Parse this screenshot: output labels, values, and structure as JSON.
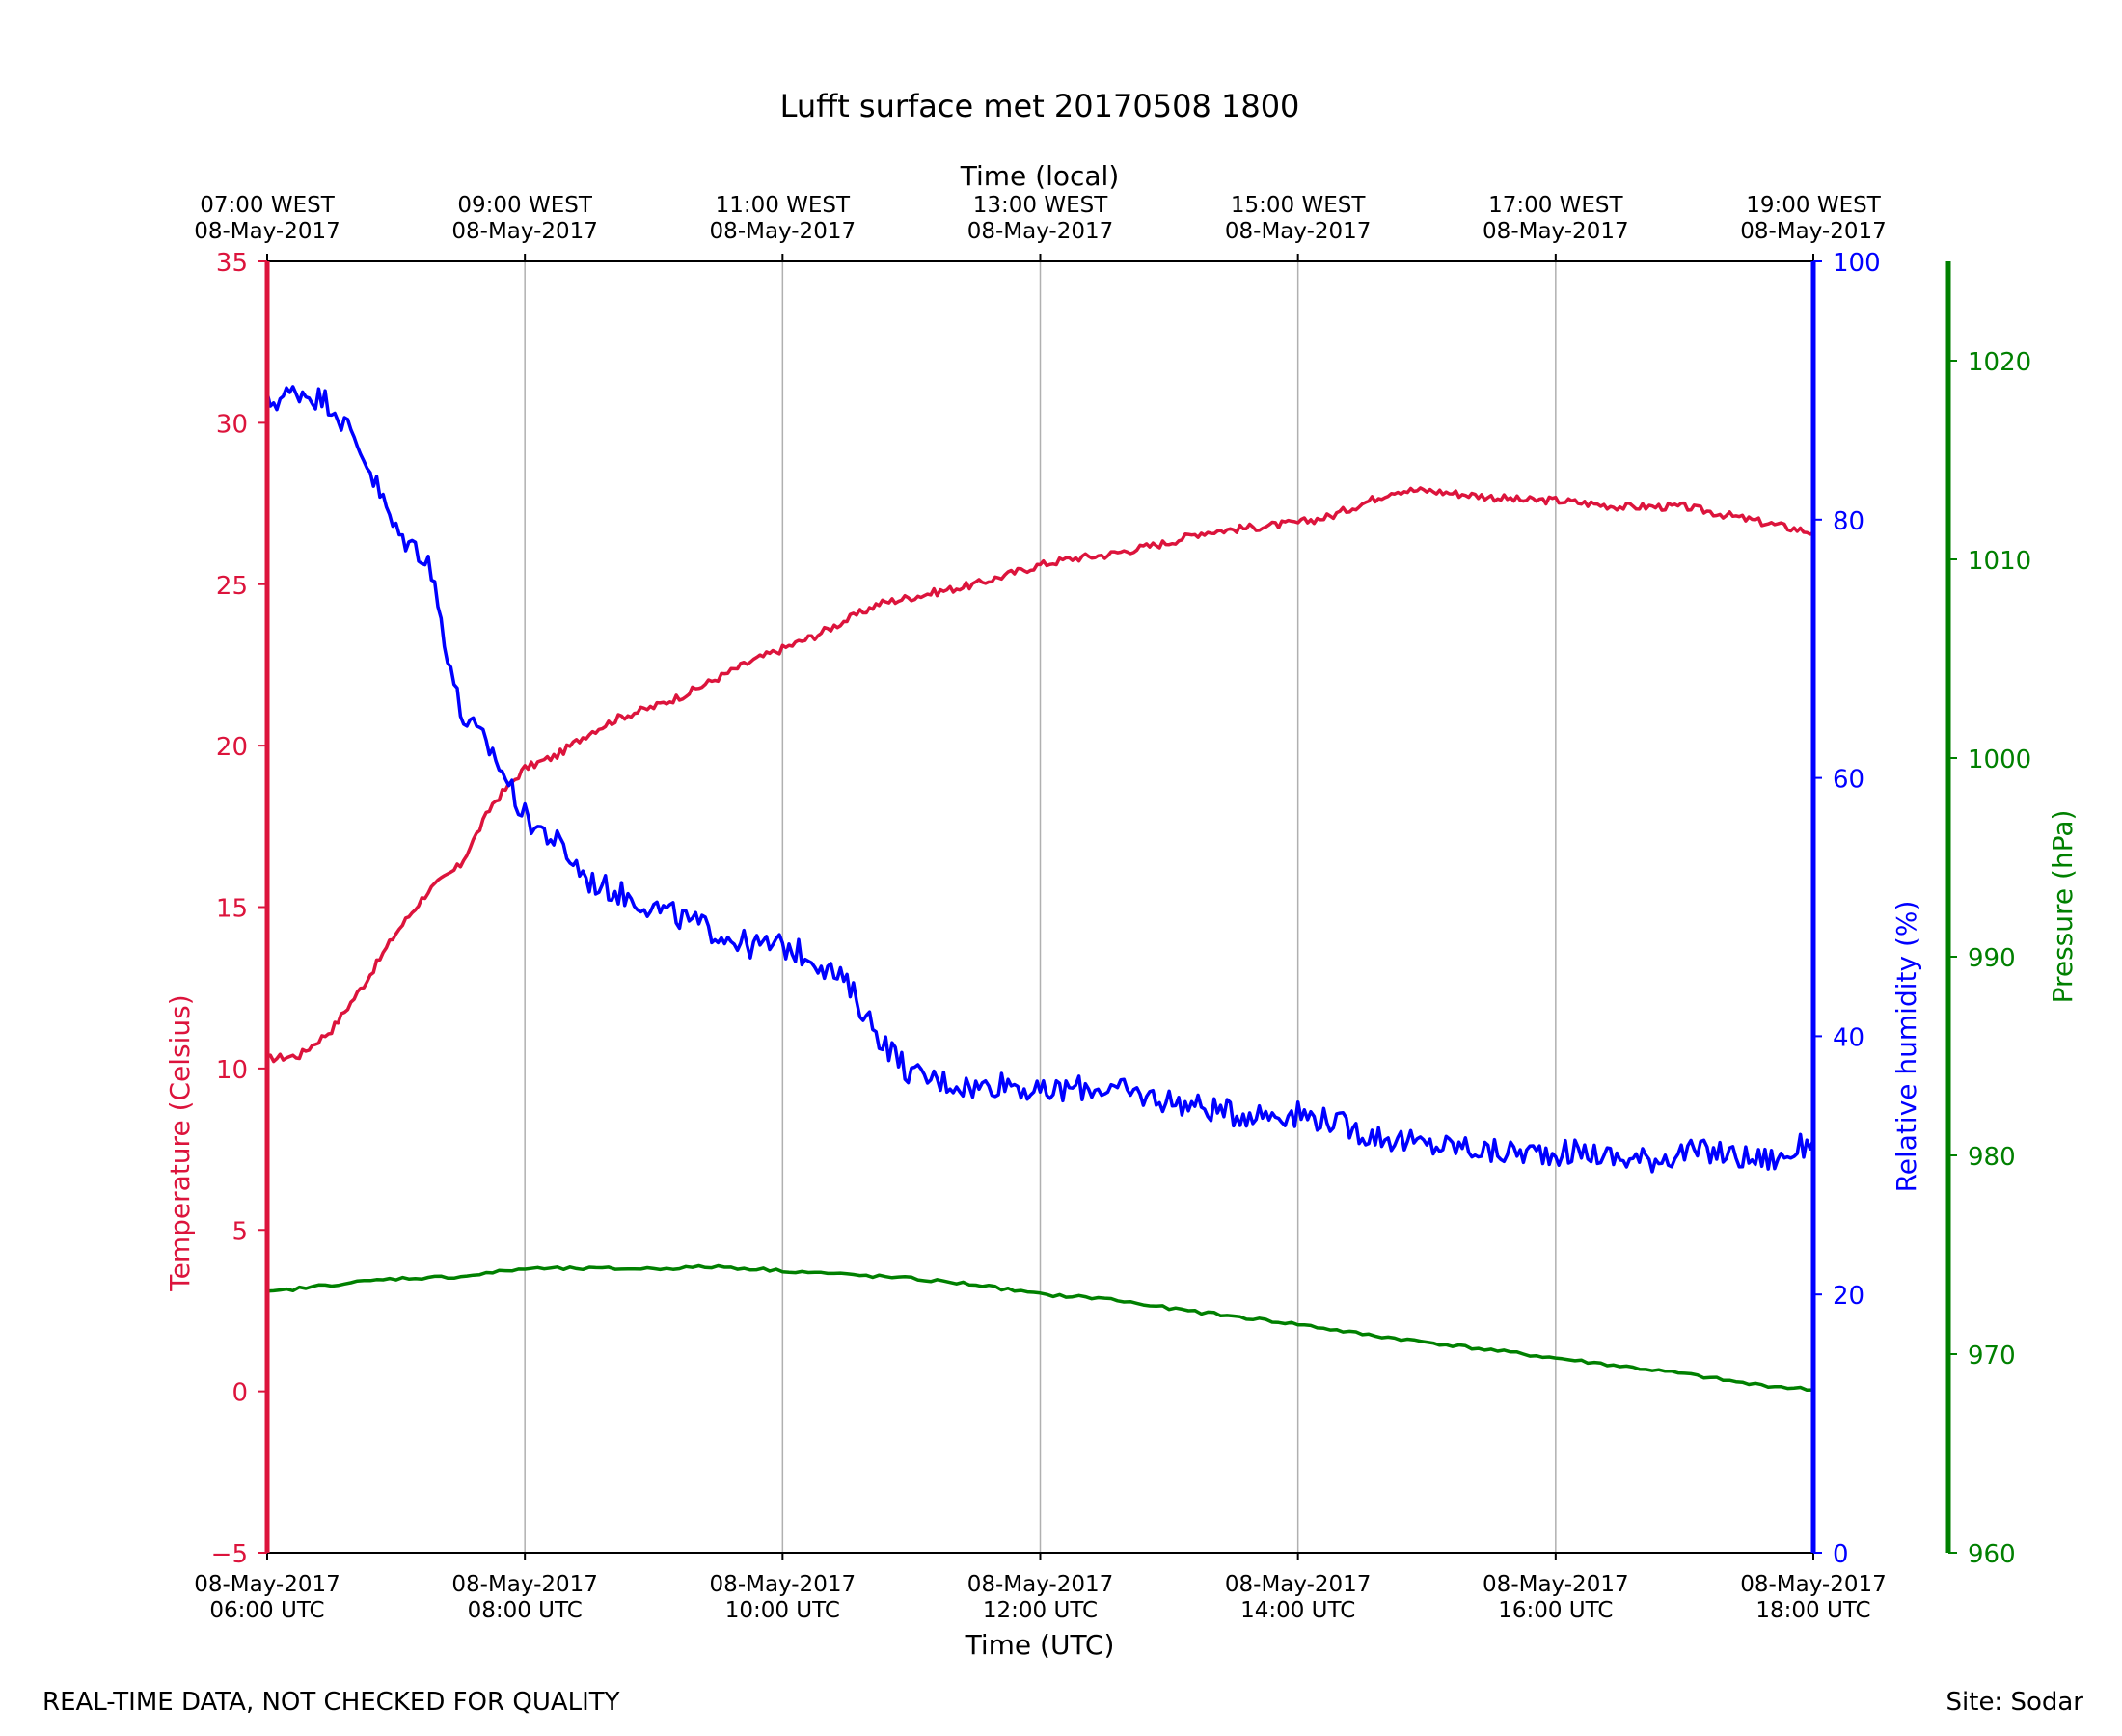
{
  "footer": {
    "note": "REAL-TIME DATA, NOT CHECKED FOR QUALITY",
    "site": "Site: Sodar"
  },
  "colors": {
    "temperature": "#dc143c",
    "humidity": "#0000ff",
    "pressure": "#008000",
    "grid": "#b0b0b0",
    "axis": "#000000"
  },
  "chart_data": {
    "type": "line",
    "title": "Lufft surface met 20170508 1800",
    "xlabel": "Time (UTC)",
    "x2label": "Time (local)",
    "xlim_hours_utc": [
      6,
      18
    ],
    "x_ticks_hours": [
      6,
      8,
      10,
      12,
      14,
      16,
      18
    ],
    "x_tick_labels_bottom": [
      [
        "08-May-2017",
        "06:00 UTC"
      ],
      [
        "08-May-2017",
        "08:00 UTC"
      ],
      [
        "08-May-2017",
        "10:00 UTC"
      ],
      [
        "08-May-2017",
        "12:00 UTC"
      ],
      [
        "08-May-2017",
        "14:00 UTC"
      ],
      [
        "08-May-2017",
        "16:00 UTC"
      ],
      [
        "08-May-2017",
        "18:00 UTC"
      ]
    ],
    "x_tick_labels_top": [
      [
        "07:00 WEST",
        "08-May-2017"
      ],
      [
        "09:00 WEST",
        "08-May-2017"
      ],
      [
        "11:00 WEST",
        "08-May-2017"
      ],
      [
        "13:00 WEST",
        "08-May-2017"
      ],
      [
        "15:00 WEST",
        "08-May-2017"
      ],
      [
        "17:00 WEST",
        "08-May-2017"
      ],
      [
        "19:00 WEST",
        "08-May-2017"
      ]
    ],
    "grid": "vertical",
    "axes": {
      "temperature": {
        "label": "Temperature (Celsius)",
        "ylim": [
          -5,
          35
        ],
        "ticks": [
          -5,
          0,
          5,
          10,
          15,
          20,
          25,
          30,
          35
        ],
        "tick_labels": [
          "−5",
          "0",
          "5",
          "10",
          "15",
          "20",
          "25",
          "30",
          "35"
        ]
      },
      "humidity": {
        "label": "Relative humidity (%)",
        "ylim": [
          0,
          100
        ],
        "ticks": [
          0,
          20,
          40,
          60,
          80,
          100
        ],
        "tick_labels": [
          "0",
          "20",
          "40",
          "60",
          "80",
          "100"
        ]
      },
      "pressure": {
        "label": "Pressure (hPa)",
        "ylim": [
          960,
          1025
        ],
        "ticks": [
          960,
          970,
          980,
          990,
          1000,
          1010,
          1020
        ],
        "tick_labels": [
          "960",
          "970",
          "980",
          "990",
          "1000",
          "1010",
          "1020"
        ]
      }
    },
    "series": [
      {
        "name": "Temperature (Celsius)",
        "axis": "temperature",
        "x": [
          6.0,
          6.25,
          6.5,
          6.75,
          7.0,
          7.25,
          7.5,
          7.75,
          8.0,
          8.25,
          8.5,
          8.75,
          9.0,
          9.25,
          9.5,
          9.75,
          10.0,
          10.25,
          10.5,
          10.75,
          11.0,
          11.25,
          11.5,
          11.75,
          12.0,
          12.25,
          12.5,
          12.75,
          13.0,
          13.25,
          13.5,
          13.75,
          14.0,
          14.25,
          14.5,
          14.75,
          15.0,
          15.25,
          15.5,
          15.75,
          16.0,
          16.25,
          16.5,
          16.75,
          17.0,
          17.25,
          17.5,
          17.75,
          18.0
        ],
        "values": [
          10.3,
          10.4,
          11.2,
          12.6,
          14.2,
          15.5,
          16.3,
          18.2,
          19.3,
          19.7,
          20.4,
          20.9,
          21.2,
          21.6,
          22.1,
          22.6,
          23.0,
          23.4,
          23.9,
          24.4,
          24.6,
          24.8,
          25.0,
          25.3,
          25.6,
          25.8,
          25.9,
          26.1,
          26.3,
          26.6,
          26.7,
          26.8,
          26.9,
          27.1,
          27.5,
          27.9,
          27.9,
          27.8,
          27.7,
          27.6,
          27.6,
          27.5,
          27.4,
          27.4,
          27.4,
          27.2,
          27.0,
          26.8,
          26.6
        ]
      },
      {
        "name": "Relative humidity (%)",
        "axis": "humidity",
        "x": [
          6.0,
          6.25,
          6.5,
          6.75,
          7.0,
          7.25,
          7.5,
          7.75,
          8.0,
          8.25,
          8.5,
          8.75,
          9.0,
          9.25,
          9.5,
          9.75,
          10.0,
          10.25,
          10.5,
          10.75,
          11.0,
          11.25,
          11.5,
          11.75,
          12.0,
          12.25,
          12.5,
          12.75,
          13.0,
          13.25,
          13.5,
          13.75,
          14.0,
          14.25,
          14.5,
          14.75,
          15.0,
          15.25,
          15.5,
          15.75,
          16.0,
          16.25,
          16.5,
          16.75,
          17.0,
          17.25,
          17.5,
          17.75,
          18.0
        ],
        "values": [
          89.0,
          90.0,
          89.0,
          85.0,
          79.0,
          77.0,
          65.0,
          62.0,
          57.0,
          55.0,
          52.0,
          51.0,
          50.0,
          49.0,
          48.0,
          47.0,
          47.0,
          46.0,
          44.0,
          40.0,
          37.0,
          36.5,
          36.0,
          36.5,
          35.5,
          36.0,
          36.0,
          35.5,
          35.0,
          34.5,
          34.0,
          34.0,
          34.0,
          33.5,
          32.5,
          32.0,
          31.5,
          31.5,
          31.0,
          31.0,
          31.0,
          31.0,
          30.5,
          30.5,
          31.0,
          31.0,
          30.5,
          30.5,
          32.0
        ]
      },
      {
        "name": "Pressure (hPa)",
        "axis": "pressure",
        "x": [
          6.0,
          6.5,
          7.0,
          7.5,
          8.0,
          8.5,
          9.0,
          9.5,
          10.0,
          10.5,
          11.0,
          11.5,
          12.0,
          12.5,
          13.0,
          13.5,
          14.0,
          14.5,
          15.0,
          15.5,
          16.0,
          16.5,
          17.0,
          17.5,
          18.0
        ],
        "values": [
          973.1,
          973.5,
          973.8,
          973.9,
          974.3,
          974.3,
          974.3,
          974.4,
          974.2,
          974.0,
          973.8,
          973.5,
          973.0,
          972.8,
          972.3,
          971.9,
          971.5,
          971.0,
          970.6,
          970.2,
          969.8,
          969.4,
          969.0,
          968.5,
          968.2
        ]
      }
    ]
  }
}
